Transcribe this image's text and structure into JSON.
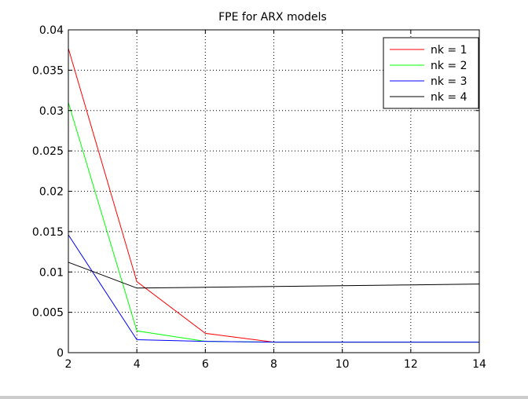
{
  "chart_data": {
    "type": "line",
    "title": "FPE for ARX models",
    "xlabel": "",
    "ylabel": "",
    "xlim": [
      2,
      14
    ],
    "ylim": [
      0,
      0.04
    ],
    "xticks": [
      "2",
      "4",
      "6",
      "8",
      "10",
      "12",
      "14"
    ],
    "yticks": [
      "0",
      "0.005",
      "0.01",
      "0.015",
      "0.02",
      "0.025",
      "0.03",
      "0.035",
      "0.04"
    ],
    "grid": true,
    "legend_position": "top-right",
    "x": [
      2,
      4,
      6,
      8,
      10,
      12,
      14
    ],
    "series": [
      {
        "name": "nk = 1",
        "color": "#ff0000",
        "values": [
          0.0377,
          0.0088,
          0.0024,
          0.0013,
          0.0013,
          0.0013,
          0.0013
        ]
      },
      {
        "name": "nk = 2",
        "color": "#00ff00",
        "values": [
          0.031,
          0.0027,
          0.0014,
          0.0013,
          0.0013,
          0.0013,
          0.0013
        ]
      },
      {
        "name": "nk = 3",
        "color": "#0000ff",
        "values": [
          0.0146,
          0.0016,
          0.0014,
          0.0013,
          0.0013,
          0.0013,
          0.0013
        ]
      },
      {
        "name": "nk = 4",
        "color": "#000000",
        "values": [
          0.0112,
          0.008,
          0.0081,
          0.0082,
          0.0083,
          0.0084,
          0.0085
        ]
      }
    ]
  }
}
